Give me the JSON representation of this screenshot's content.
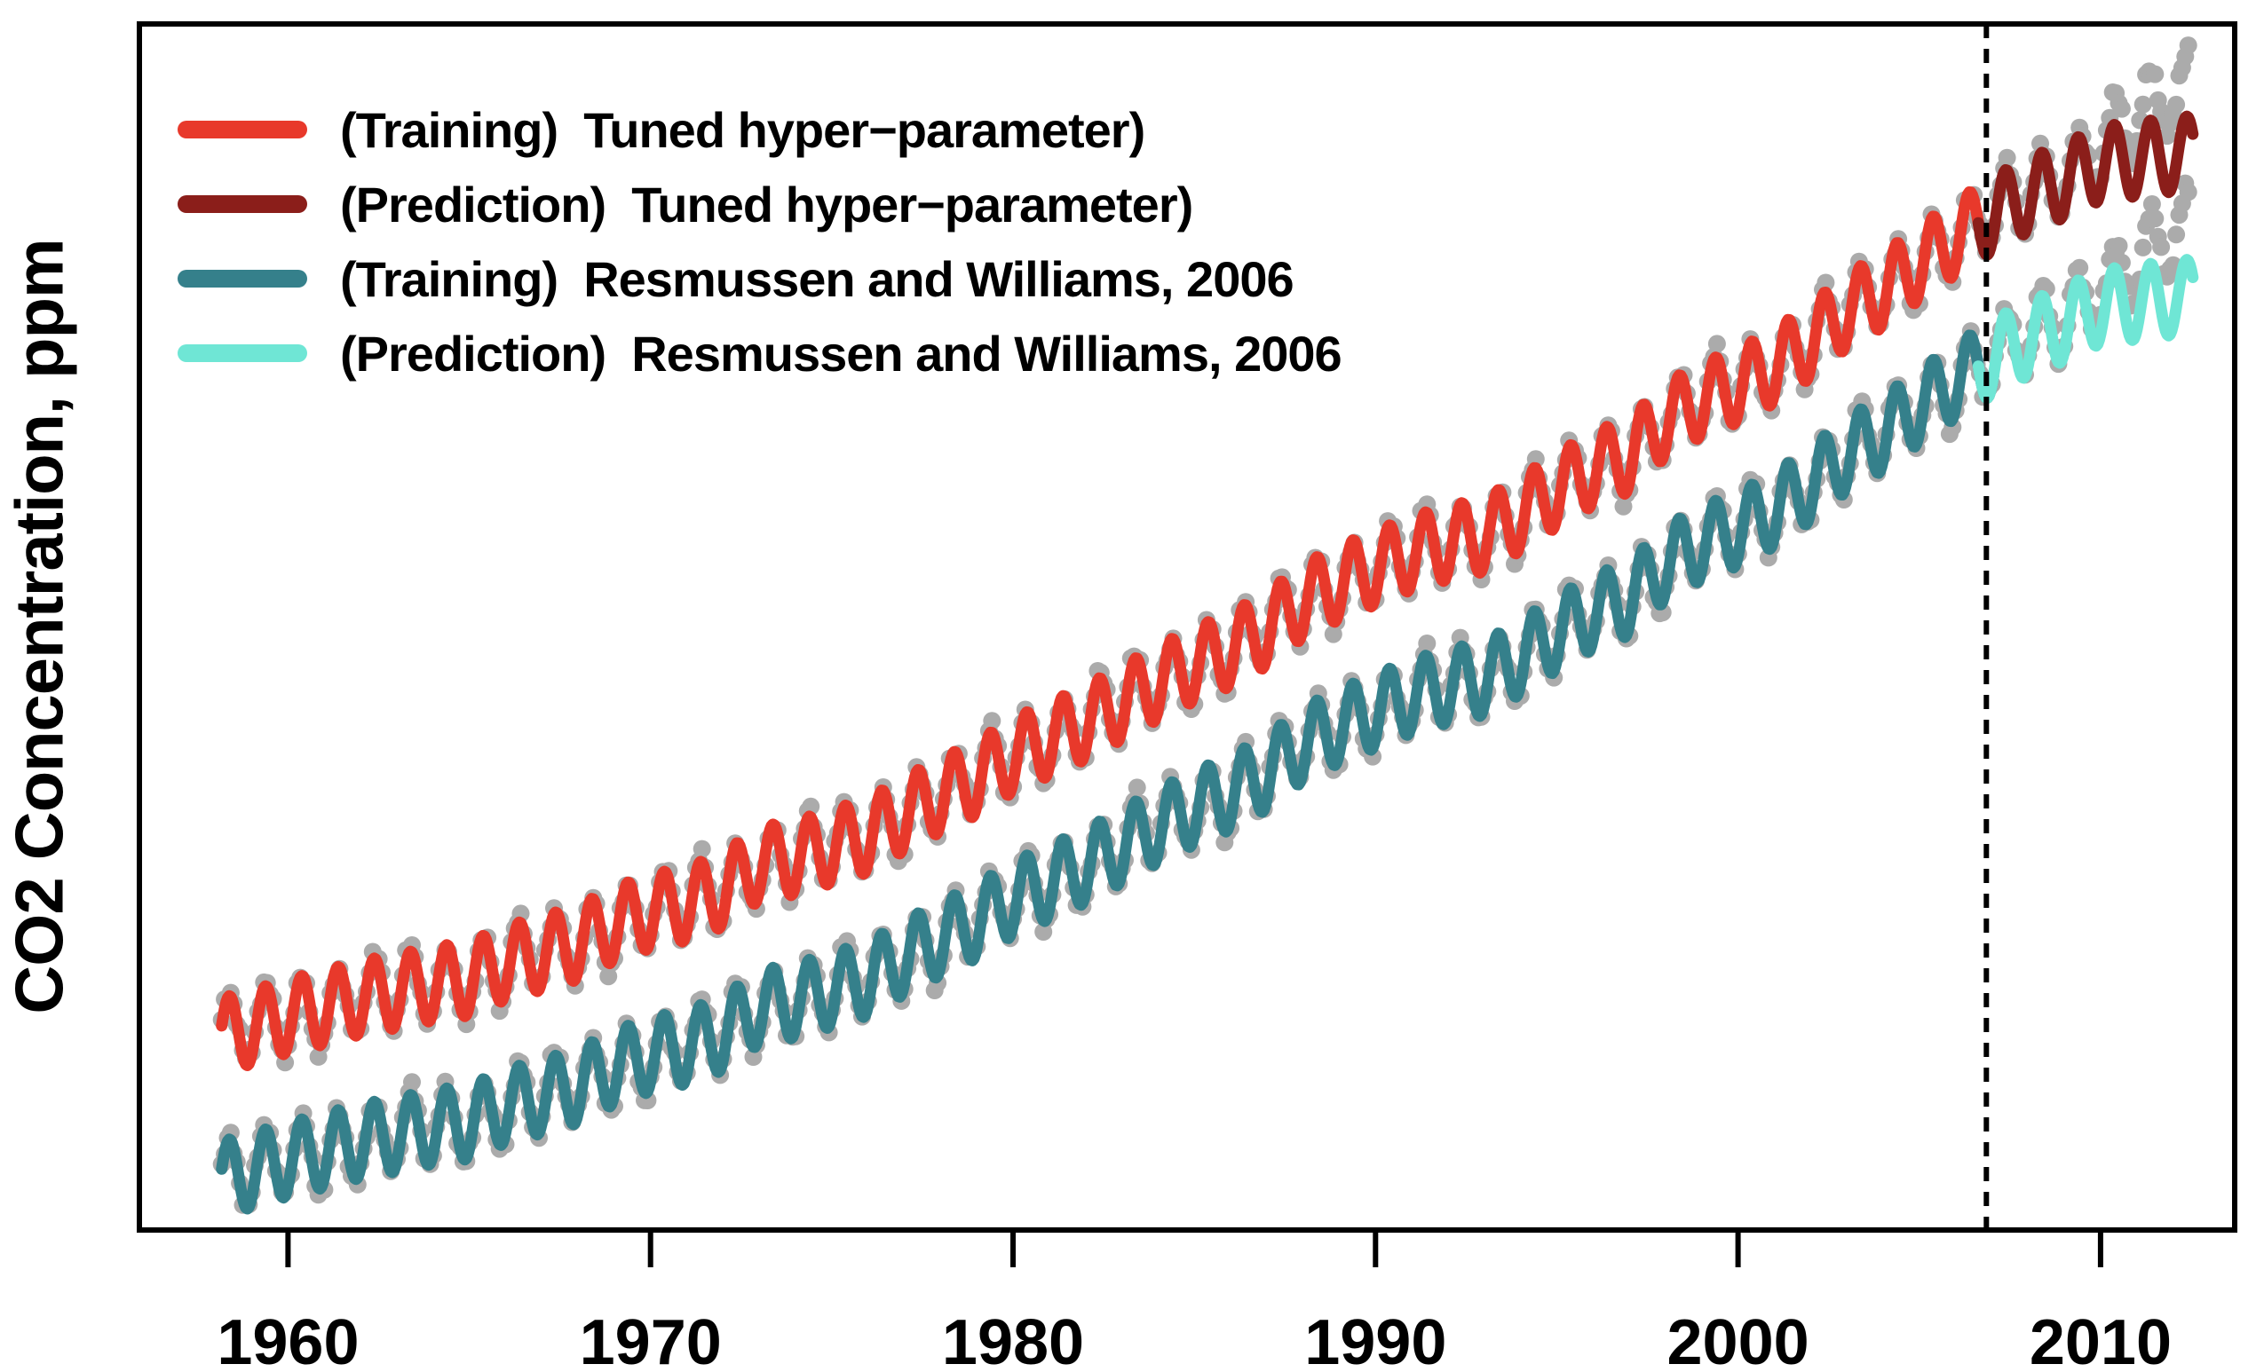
{
  "figure": {
    "background": "#ffffff"
  },
  "chart_data": {
    "type": "line",
    "title": "",
    "xlabel": "",
    "ylabel": "CO2 Concentration, ppm",
    "x_ticks": [
      1960,
      1970,
      1980,
      1990,
      2000,
      2010
    ],
    "x_range": [
      1955.9,
      2013.7
    ],
    "y_range_ppm": [
      299,
      400
    ],
    "grid": false,
    "legend_position": "top-left",
    "data_start_year": 1958.17,
    "data_end_year": 2012.55,
    "dots_end_year": 2012.45,
    "train_end_year": 2007.05,
    "prediction_start_year": 2006.6,
    "vline_year": 2006.85,
    "vline_style": "dashed",
    "seasonal_amplitude_ppm": 3.1,
    "seasonal_peak_month_fraction": 0.38,
    "series_offset_ppm": 12,
    "prediction_underestimate_ppm_at_end": 6.2,
    "dot_color": "#ABABAB",
    "dot_radius_px": 10,
    "annual_mean_co2_ppm": {
      "start_year": 1958,
      "values": [
        315.2,
        315.98,
        316.91,
        317.64,
        318.45,
        318.99,
        319.62,
        320.04,
        321.37,
        322.18,
        323.05,
        324.62,
        325.68,
        326.32,
        327.46,
        329.68,
        330.19,
        331.12,
        332.03,
        333.84,
        335.41,
        336.84,
        338.76,
        340.12,
        341.48,
        343.15,
        344.85,
        346.35,
        347.61,
        349.31,
        351.69,
        353.2,
        354.45,
        355.7,
        356.54,
        357.21,
        358.96,
        360.97,
        362.74,
        363.88,
        366.84,
        368.54,
        369.71,
        371.32,
        373.45,
        375.98,
        377.7,
        379.98,
        382.09,
        384.02,
        385.83,
        387.64,
        390.1,
        391.85,
        394.06,
        396.5
      ]
    },
    "series": [
      {
        "name": "(Training)  Tuned hyper−parameter)",
        "role": "training",
        "group": "tuned",
        "color": "#E8392B",
        "offset_ppm": 0
      },
      {
        "name": "(Prediction)  Tuned hyper−parameter)",
        "role": "prediction",
        "group": "tuned",
        "color": "#8B1E1A",
        "offset_ppm": 0
      },
      {
        "name": "(Training)  Resmussen and Williams, 2006",
        "role": "training",
        "group": "rasmussen",
        "color": "#35808B",
        "offset_ppm": -12
      },
      {
        "name": "(Prediction)  Resmussen and Williams, 2006",
        "role": "prediction",
        "group": "rasmussen",
        "color": "#6FE6D5",
        "offset_ppm": -12
      }
    ]
  }
}
